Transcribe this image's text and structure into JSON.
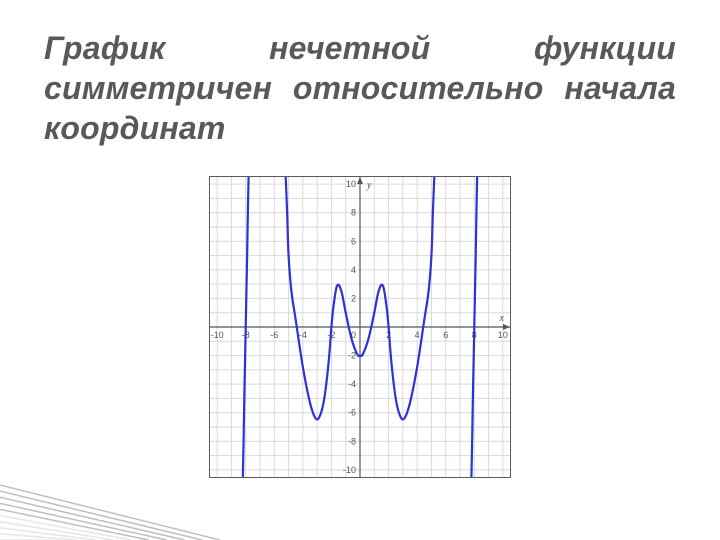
{
  "title": "График нечетной функции симметричен относительно начала координат",
  "chart": {
    "type": "line",
    "xlim": [
      -10.5,
      10.5
    ],
    "ylim": [
      -10.5,
      10.5
    ],
    "xtick_step": 2,
    "ytick_step": 2,
    "xticks": [
      -10,
      -8,
      -6,
      -4,
      -2,
      0,
      2,
      4,
      6,
      8,
      10
    ],
    "yticks": [
      -10,
      -8,
      -6,
      -4,
      -2,
      2,
      4,
      6,
      8,
      10
    ],
    "origin_label": "0",
    "x_axis_label": "x",
    "y_axis_label": "y",
    "grid_spacing": 1,
    "grid_color": "#d9d9d9",
    "axis_color": "#555555",
    "background_color": "#ffffff",
    "curve_color": "#3030d8",
    "curve_width": 2.2,
    "label_fontsize": 9,
    "label_color": "#555555",
    "branches": [
      {
        "points": [
          [
            -8.2,
            -10.5
          ],
          [
            -8.15,
            -8
          ],
          [
            -8.1,
            -5
          ],
          [
            -8.0,
            0
          ],
          [
            -7.9,
            5
          ],
          [
            -7.85,
            8
          ],
          [
            -7.8,
            10.5
          ]
        ]
      },
      {
        "points": [
          [
            -5.2,
            -10.5
          ],
          [
            -5.1,
            -8
          ],
          [
            -5.0,
            -5
          ],
          [
            -4.8,
            -2.5
          ],
          [
            -4.5,
            -0.5
          ],
          [
            -4.0,
            2.8
          ],
          [
            -3.5,
            5.3
          ],
          [
            -3.1,
            6.4
          ],
          [
            -2.8,
            6.2
          ],
          [
            -2.5,
            5.0
          ],
          [
            -2.2,
            2.5
          ],
          [
            -2.0,
            0.0
          ],
          [
            -1.85,
            -1.5
          ],
          [
            -1.6,
            -2.9
          ],
          [
            -1.3,
            -2.5
          ],
          [
            -1.0,
            -1.0
          ],
          [
            -0.6,
            0.8
          ],
          [
            -0.2,
            1.9
          ],
          [
            0.0,
            2.0
          ],
          [
            0.2,
            1.9
          ],
          [
            0.6,
            0.8
          ],
          [
            1.0,
            -1.0
          ],
          [
            1.3,
            -2.5
          ],
          [
            1.6,
            -2.9
          ],
          [
            1.85,
            -1.5
          ],
          [
            2.0,
            0.0
          ],
          [
            2.2,
            2.5
          ],
          [
            2.5,
            5.0
          ],
          [
            2.8,
            6.2
          ],
          [
            3.1,
            6.4
          ],
          [
            3.5,
            5.3
          ],
          [
            4.0,
            2.8
          ],
          [
            4.5,
            -0.5
          ],
          [
            4.8,
            -2.5
          ],
          [
            5.0,
            -5
          ],
          [
            5.1,
            -8
          ],
          [
            5.2,
            -10.5
          ]
        ],
        "invert_y": true
      },
      {
        "points": [
          [
            7.8,
            -10.5
          ],
          [
            7.85,
            -8
          ],
          [
            7.9,
            -5
          ],
          [
            8.0,
            0
          ],
          [
            8.1,
            5
          ],
          [
            8.15,
            8
          ],
          [
            8.2,
            10.5
          ]
        ]
      }
    ]
  },
  "decor": {
    "line_color": "#bfbfbf",
    "fade_color": "#e6e6e6"
  }
}
